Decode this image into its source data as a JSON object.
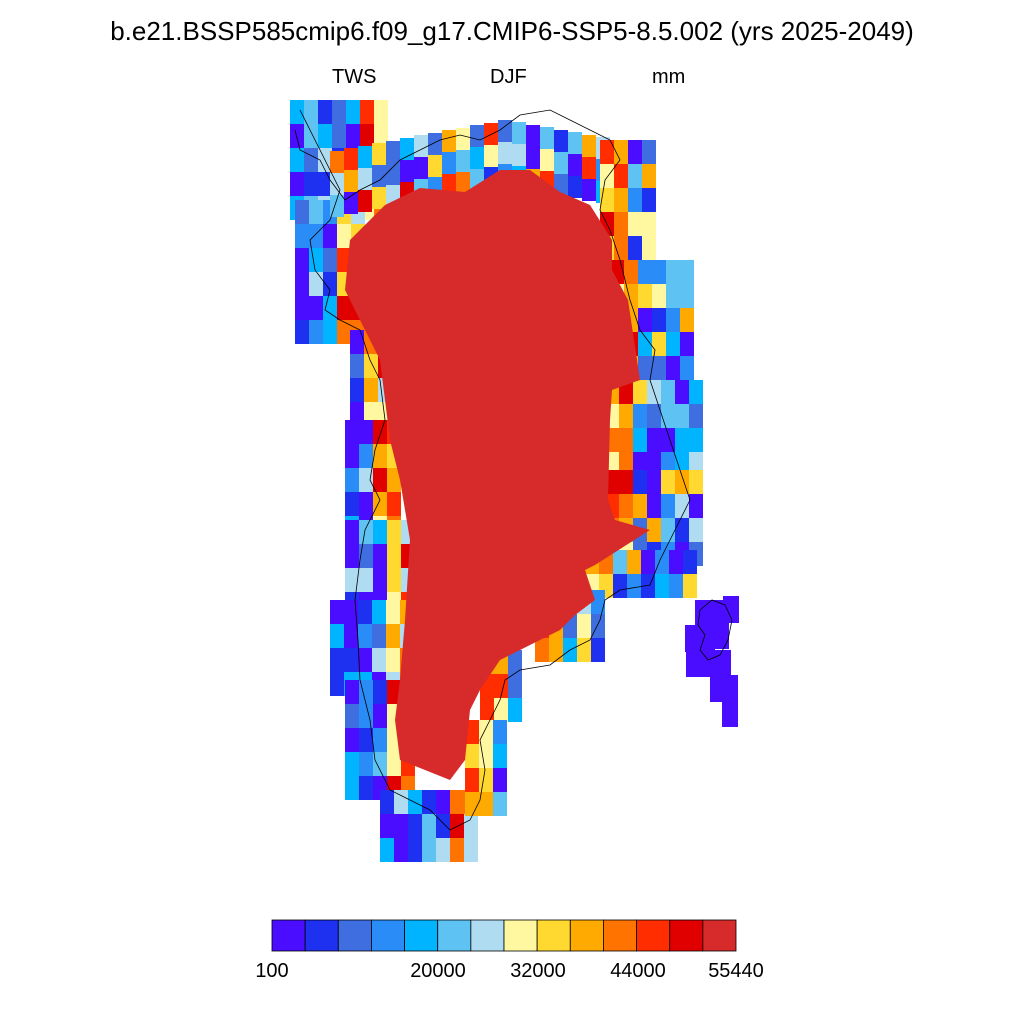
{
  "title": "b.e21.BSSP585cmip6.f09_g17.CMIP6-SSP5-8.5.002 (yrs 2025-2049)",
  "left_label": "TWS",
  "center_label": "DJF",
  "right_label": "mm",
  "colorbar": {
    "colors": [
      "#4a0dff",
      "#1e30f0",
      "#3e6ee0",
      "#2a8cf7",
      "#00b4ff",
      "#5ec3f2",
      "#b0dcf2",
      "#fff8a0",
      "#ffd830",
      "#ffaa00",
      "#ff7300",
      "#ff2d00",
      "#e00000",
      "#d72b2b"
    ],
    "labels": [
      "100",
      "20000",
      "32000",
      "44000",
      "55440"
    ]
  },
  "chart_data": {
    "type": "heatmap",
    "variable": "TWS",
    "season": "DJF",
    "units": "mm",
    "scale_labels": [
      "100",
      "20000",
      "32000",
      "44000",
      "55440"
    ],
    "note_interior_value": "55440"
  }
}
